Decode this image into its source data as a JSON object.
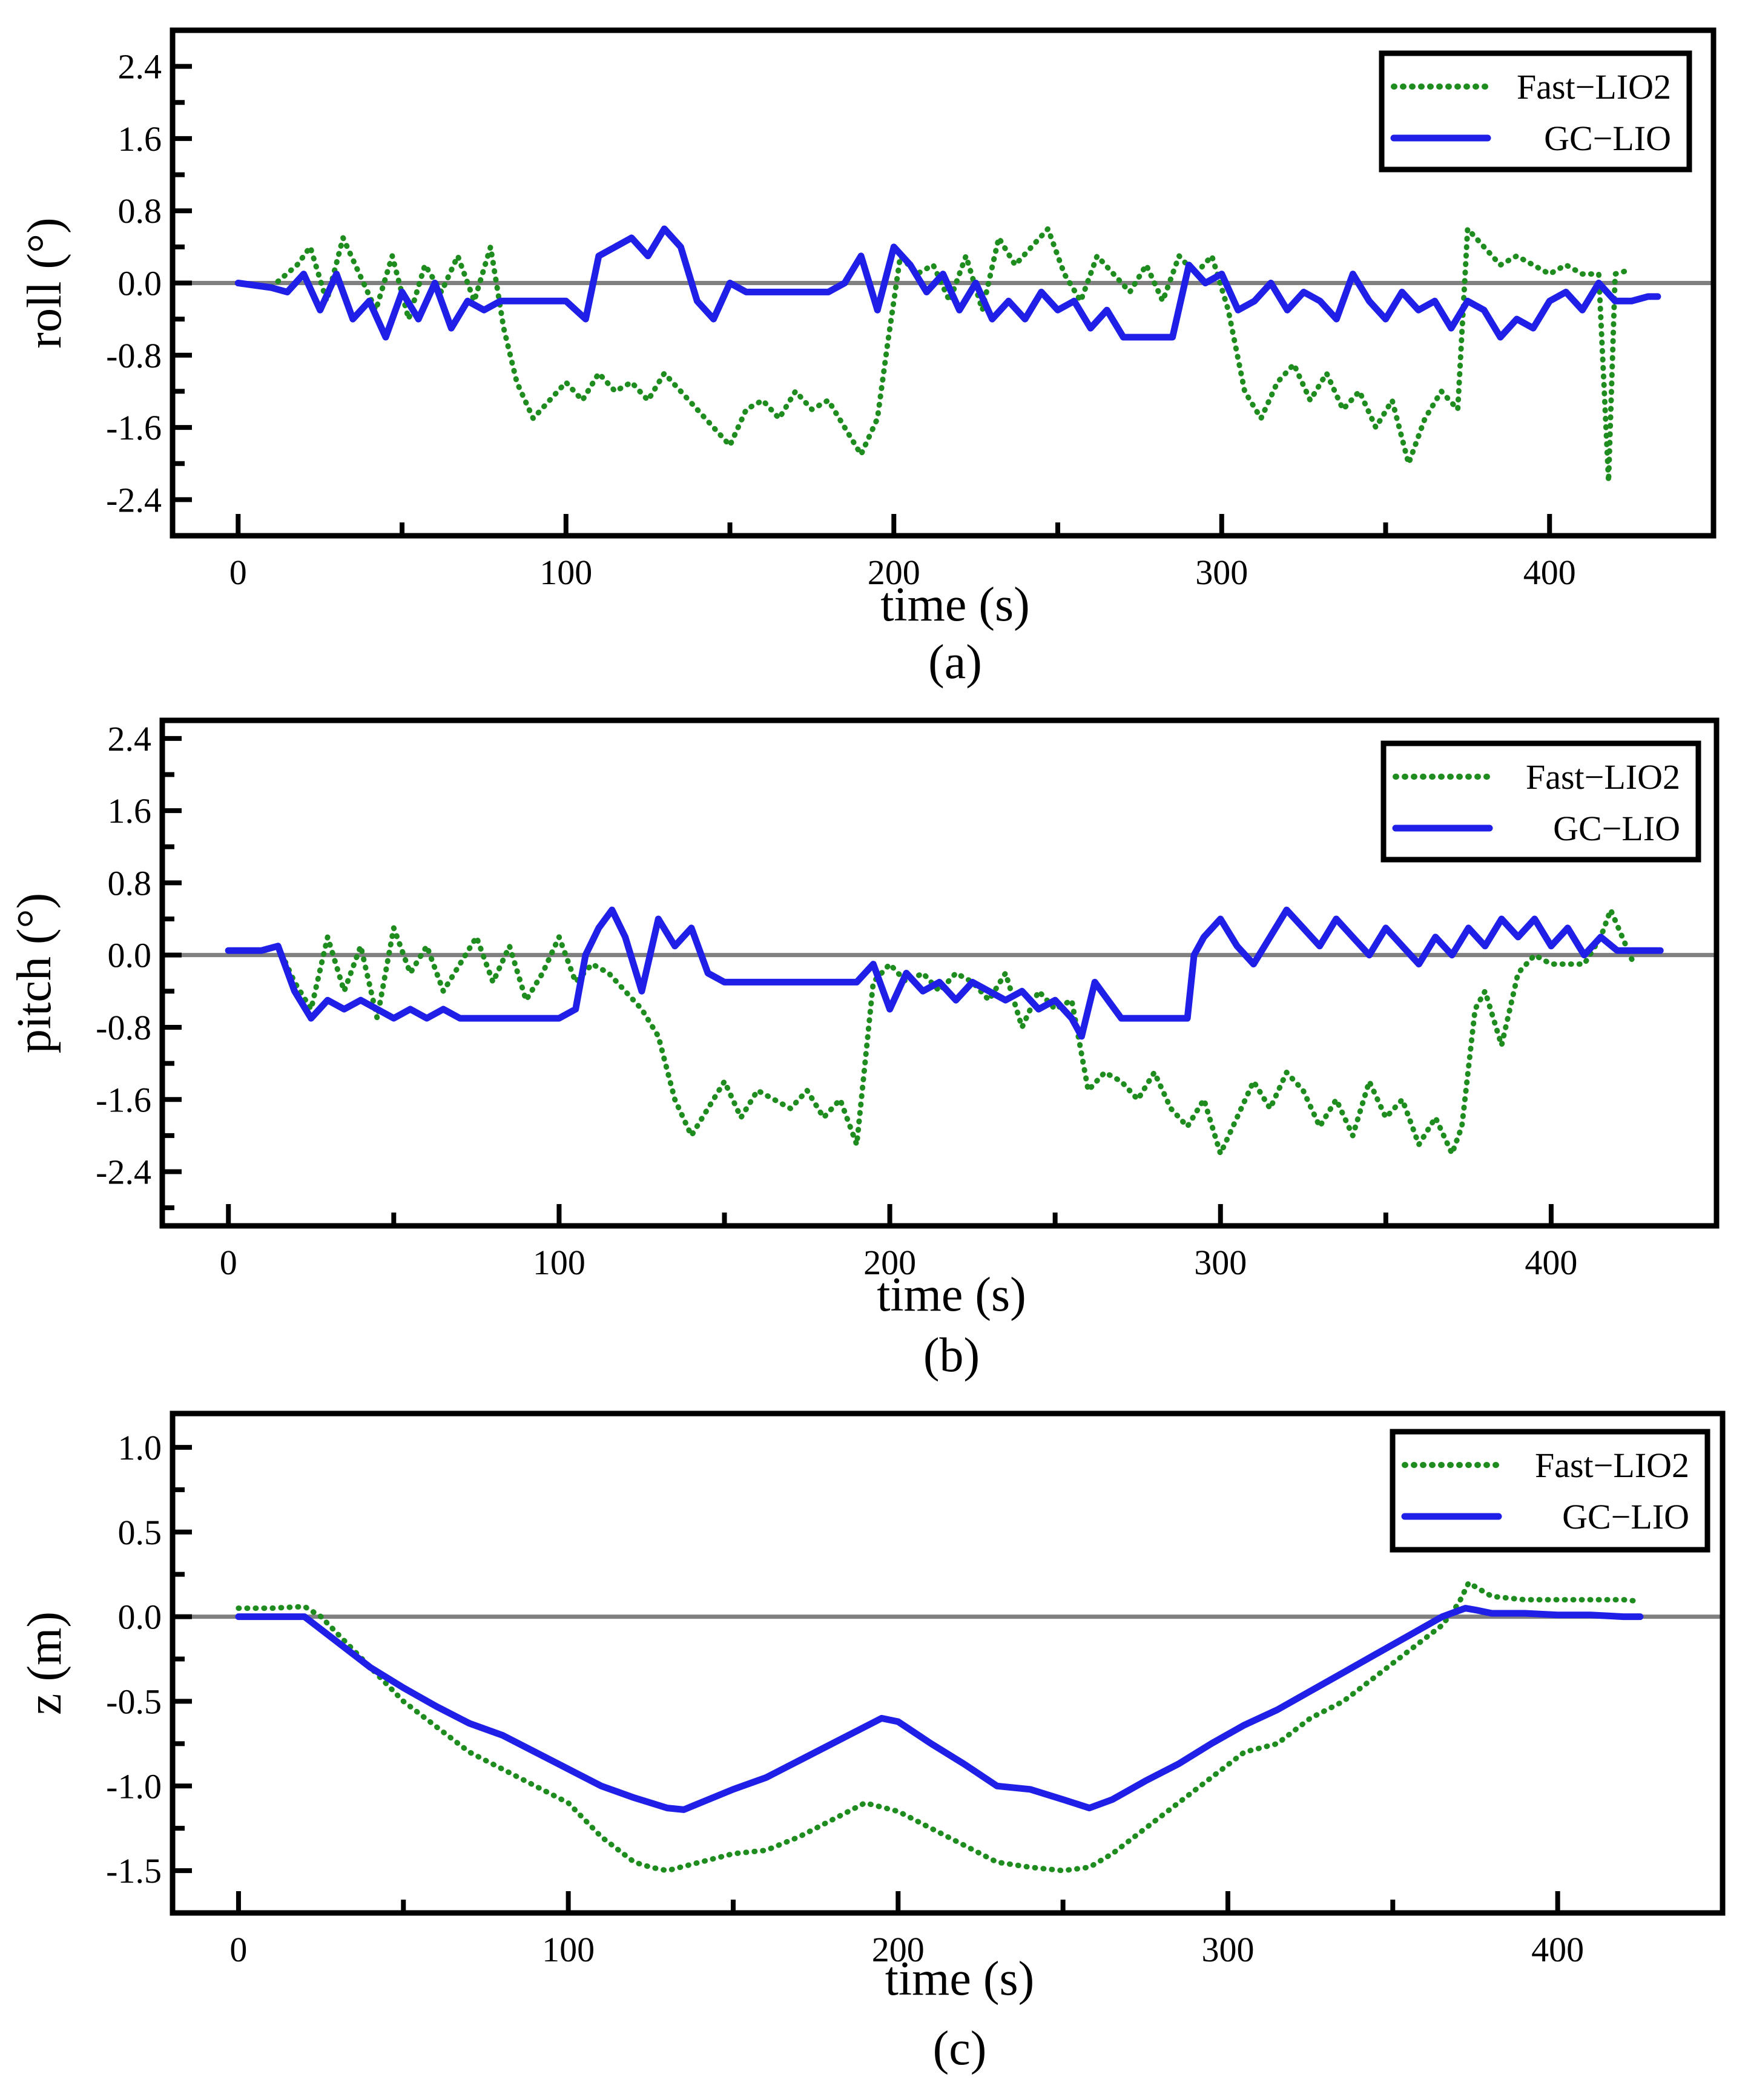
{
  "chart_data": [
    {
      "type": "line",
      "title": "",
      "caption": "(a)",
      "xlabel": "time (s)",
      "ylabel": "roll (°)",
      "xlim": [
        -20,
        450
      ],
      "ylim": [
        -2.8,
        2.8
      ],
      "xticks": [
        0,
        100,
        200,
        300,
        400
      ],
      "xtick_labels": [
        "0",
        "100",
        "200",
        "300",
        "400"
      ],
      "yticks": [
        2.4,
        1.6,
        0.8,
        0.0,
        -0.8,
        -1.6,
        -2.4
      ],
      "ytick_labels": [
        "2.4",
        "1.6",
        "0.8",
        "0.0",
        "-0.8",
        "-1.6",
        "-2.4"
      ],
      "reference_line": 0.0,
      "legend": {
        "position": "top-right",
        "entries": [
          "Fast−LIO2",
          "GC−LIO"
        ]
      },
      "series": [
        {
          "name": "Fast−LIO2",
          "style": "dotted",
          "color": "#1e8c1e",
          "x": [
            0,
            10,
            18,
            22,
            27,
            32,
            37,
            42,
            47,
            52,
            57,
            62,
            67,
            72,
            77,
            81,
            85,
            90,
            95,
            100,
            105,
            110,
            115,
            120,
            125,
            130,
            135,
            140,
            145,
            150,
            155,
            160,
            165,
            170,
            175,
            180,
            185,
            190,
            195,
            198,
            202,
            207,
            212,
            217,
            222,
            227,
            232,
            237,
            242,
            247,
            252,
            257,
            262,
            267,
            272,
            277,
            282,
            287,
            292,
            297,
            302,
            307,
            312,
            317,
            322,
            327,
            332,
            337,
            342,
            347,
            352,
            357,
            362,
            367,
            372,
            375,
            380,
            385,
            390,
            395,
            400,
            405,
            410,
            415,
            418,
            420,
            425
          ],
          "y": [
            0.0,
            -0.05,
            0.2,
            0.4,
            -0.2,
            0.5,
            0.1,
            -0.3,
            0.3,
            -0.4,
            0.2,
            -0.1,
            0.3,
            -0.2,
            0.4,
            -0.5,
            -1.1,
            -1.5,
            -1.3,
            -1.1,
            -1.3,
            -1.0,
            -1.2,
            -1.1,
            -1.3,
            -1.0,
            -1.2,
            -1.4,
            -1.6,
            -1.8,
            -1.4,
            -1.3,
            -1.5,
            -1.2,
            -1.4,
            -1.3,
            -1.6,
            -1.9,
            -1.5,
            -0.7,
            0.3,
            0.1,
            0.2,
            -0.2,
            0.3,
            -0.3,
            0.5,
            0.2,
            0.4,
            0.6,
            0.1,
            -0.2,
            0.3,
            0.1,
            -0.1,
            0.2,
            -0.2,
            0.3,
            0.1,
            0.3,
            -0.3,
            -1.2,
            -1.5,
            -1.1,
            -0.9,
            -1.3,
            -1.0,
            -1.4,
            -1.2,
            -1.6,
            -1.3,
            -2.0,
            -1.5,
            -1.2,
            -1.4,
            0.6,
            0.4,
            0.2,
            0.3,
            0.2,
            0.1,
            0.2,
            0.1,
            0.1,
            -2.2,
            0.1,
            0.15
          ]
        },
        {
          "name": "GC−LIO",
          "style": "solid",
          "color": "#1f1fe8",
          "x": [
            0,
            10,
            15,
            20,
            25,
            30,
            35,
            40,
            45,
            50,
            55,
            60,
            65,
            70,
            75,
            80,
            85,
            90,
            95,
            100,
            103,
            106,
            110,
            115,
            120,
            125,
            130,
            135,
            140,
            145,
            150,
            155,
            160,
            165,
            170,
            175,
            180,
            185,
            190,
            195,
            200,
            205,
            210,
            215,
            220,
            225,
            230,
            235,
            240,
            245,
            250,
            255,
            260,
            265,
            270,
            275,
            280,
            285,
            290,
            295,
            300,
            305,
            310,
            315,
            320,
            325,
            330,
            335,
            340,
            345,
            350,
            355,
            360,
            365,
            370,
            375,
            380,
            385,
            390,
            395,
            400,
            405,
            410,
            415,
            420,
            425,
            430,
            433
          ],
          "y": [
            0.0,
            -0.05,
            -0.1,
            0.1,
            -0.3,
            0.1,
            -0.4,
            -0.2,
            -0.6,
            -0.1,
            -0.4,
            0.0,
            -0.5,
            -0.2,
            -0.3,
            -0.2,
            -0.2,
            -0.2,
            -0.2,
            -0.2,
            -0.3,
            -0.4,
            0.3,
            0.4,
            0.5,
            0.3,
            0.6,
            0.4,
            -0.2,
            -0.4,
            0.0,
            -0.1,
            -0.1,
            -0.1,
            -0.1,
            -0.1,
            -0.1,
            0.0,
            0.3,
            -0.3,
            0.4,
            0.2,
            -0.1,
            0.1,
            -0.3,
            0.0,
            -0.4,
            -0.2,
            -0.4,
            -0.1,
            -0.3,
            -0.2,
            -0.5,
            -0.3,
            -0.6,
            -0.6,
            -0.6,
            -0.6,
            0.2,
            0.0,
            0.1,
            -0.3,
            -0.2,
            0.0,
            -0.3,
            -0.1,
            -0.2,
            -0.4,
            0.1,
            -0.2,
            -0.4,
            -0.1,
            -0.3,
            -0.2,
            -0.5,
            -0.2,
            -0.3,
            -0.6,
            -0.4,
            -0.5,
            -0.2,
            -0.1,
            -0.3,
            0.0,
            -0.2,
            -0.2,
            -0.15,
            -0.15
          ]
        }
      ]
    },
    {
      "type": "line",
      "title": "",
      "caption": "(b)",
      "xlabel": "time (s)",
      "ylabel": "pitch (°)",
      "xlim": [
        -20,
        450
      ],
      "ylim": [
        -3.0,
        2.6
      ],
      "xticks": [
        0,
        100,
        200,
        300,
        400
      ],
      "xtick_labels": [
        "0",
        "100",
        "200",
        "300",
        "400"
      ],
      "yticks": [
        2.4,
        1.6,
        0.8,
        0.0,
        -0.8,
        -1.6,
        -2.4
      ],
      "ytick_labels": [
        "2.4",
        "1.6",
        "0.8",
        "0.0",
        "-0.8",
        "-1.6",
        "-2.4"
      ],
      "reference_line": 0.0,
      "legend": {
        "position": "top-right",
        "entries": [
          "Fast−LIO2",
          "GC−LIO"
        ]
      },
      "series": [
        {
          "name": "Fast−LIO2",
          "style": "dotted",
          "color": "#1e8c1e",
          "x": [
            0,
            10,
            15,
            20,
            25,
            30,
            35,
            40,
            45,
            50,
            55,
            60,
            65,
            70,
            75,
            80,
            85,
            90,
            95,
            100,
            105,
            110,
            115,
            120,
            125,
            130,
            135,
            140,
            145,
            150,
            155,
            160,
            165,
            170,
            175,
            180,
            185,
            190,
            195,
            200,
            205,
            210,
            215,
            220,
            225,
            230,
            235,
            240,
            245,
            250,
            255,
            260,
            265,
            270,
            275,
            280,
            285,
            290,
            295,
            300,
            305,
            310,
            315,
            320,
            325,
            330,
            335,
            340,
            345,
            350,
            355,
            360,
            365,
            370,
            373,
            377,
            380,
            385,
            390,
            395,
            400,
            405,
            410,
            415,
            418,
            425
          ],
          "y": [
            0.05,
            0.05,
            0.1,
            -0.3,
            -0.6,
            0.2,
            -0.4,
            0.1,
            -0.7,
            0.3,
            -0.2,
            0.1,
            -0.4,
            -0.1,
            0.2,
            -0.3,
            0.1,
            -0.5,
            -0.2,
            0.2,
            -0.3,
            -0.1,
            -0.2,
            -0.4,
            -0.6,
            -0.9,
            -1.6,
            -2.0,
            -1.7,
            -1.4,
            -1.8,
            -1.5,
            -1.6,
            -1.7,
            -1.5,
            -1.8,
            -1.6,
            -2.1,
            -0.3,
            -0.1,
            -0.3,
            -0.2,
            -0.4,
            -0.2,
            -0.3,
            -0.5,
            -0.2,
            -0.8,
            -0.4,
            -0.6,
            -0.5,
            -1.5,
            -1.3,
            -1.4,
            -1.6,
            -1.3,
            -1.7,
            -1.9,
            -1.6,
            -2.2,
            -1.8,
            -1.4,
            -1.7,
            -1.3,
            -1.5,
            -1.9,
            -1.6,
            -2.0,
            -1.4,
            -1.8,
            -1.6,
            -2.1,
            -1.8,
            -2.2,
            -1.9,
            -0.6,
            -0.4,
            -1.0,
            -0.2,
            0.0,
            -0.1,
            -0.1,
            -0.1,
            0.2,
            0.5,
            -0.1
          ]
        },
        {
          "name": "GC−LIO",
          "style": "solid",
          "color": "#1f1fe8",
          "x": [
            0,
            10,
            15,
            20,
            25,
            30,
            35,
            40,
            45,
            50,
            55,
            60,
            65,
            70,
            75,
            80,
            85,
            90,
            95,
            100,
            105,
            108,
            112,
            116,
            120,
            125,
            130,
            135,
            140,
            145,
            150,
            155,
            160,
            165,
            170,
            175,
            180,
            185,
            190,
            195,
            200,
            205,
            210,
            215,
            220,
            225,
            230,
            235,
            240,
            245,
            250,
            255,
            258,
            262,
            266,
            270,
            275,
            280,
            285,
            290,
            292,
            295,
            300,
            305,
            310,
            315,
            320,
            325,
            330,
            335,
            340,
            345,
            350,
            355,
            360,
            365,
            370,
            375,
            380,
            385,
            390,
            395,
            400,
            405,
            410,
            415,
            420,
            425,
            430,
            433
          ],
          "y": [
            0.05,
            0.05,
            0.1,
            -0.4,
            -0.7,
            -0.5,
            -0.6,
            -0.5,
            -0.6,
            -0.7,
            -0.6,
            -0.7,
            -0.6,
            -0.7,
            -0.7,
            -0.7,
            -0.7,
            -0.7,
            -0.7,
            -0.7,
            -0.6,
            0.0,
            0.3,
            0.5,
            0.2,
            -0.4,
            0.4,
            0.1,
            0.3,
            -0.2,
            -0.3,
            -0.3,
            -0.3,
            -0.3,
            -0.3,
            -0.3,
            -0.3,
            -0.3,
            -0.3,
            -0.1,
            -0.6,
            -0.2,
            -0.4,
            -0.3,
            -0.5,
            -0.3,
            -0.4,
            -0.5,
            -0.4,
            -0.6,
            -0.5,
            -0.7,
            -0.9,
            -0.3,
            -0.5,
            -0.7,
            -0.7,
            -0.7,
            -0.7,
            -0.7,
            0.0,
            0.2,
            0.4,
            0.1,
            -0.1,
            0.2,
            0.5,
            0.3,
            0.1,
            0.4,
            0.2,
            0.0,
            0.3,
            0.1,
            -0.1,
            0.2,
            0.0,
            0.3,
            0.1,
            0.4,
            0.2,
            0.4,
            0.1,
            0.3,
            0.0,
            0.2,
            0.05,
            0.05,
            0.05,
            0.05
          ]
        }
      ]
    },
    {
      "type": "line",
      "title": "",
      "caption": "(c)",
      "xlabel": "time (s)",
      "ylabel": "z (m)",
      "xlim": [
        -20,
        450
      ],
      "ylim": [
        -1.75,
        1.2
      ],
      "xticks": [
        0,
        100,
        200,
        300,
        400
      ],
      "xtick_labels": [
        "0",
        "100",
        "200",
        "300",
        "400"
      ],
      "yticks": [
        1.0,
        0.5,
        0.0,
        -0.5,
        -1.0,
        -1.5
      ],
      "ytick_labels": [
        "1.0",
        "0.5",
        "0.0",
        "-0.5",
        "-1.0",
        "-1.5"
      ],
      "reference_line": 0.0,
      "legend": {
        "position": "top-right",
        "entries": [
          "Fast−LIO2",
          "GC−LIO"
        ]
      },
      "series": [
        {
          "name": "Fast−LIO2",
          "style": "dotted",
          "color": "#1e8c1e",
          "x": [
            0,
            10,
            20,
            25,
            30,
            40,
            50,
            60,
            70,
            80,
            90,
            100,
            110,
            120,
            125,
            130,
            140,
            150,
            160,
            170,
            180,
            190,
            200,
            210,
            220,
            230,
            240,
            250,
            258,
            265,
            275,
            285,
            295,
            305,
            315,
            325,
            335,
            345,
            355,
            365,
            370,
            373,
            380,
            390,
            400,
            410,
            420,
            425
          ],
          "y": [
            0.05,
            0.05,
            0.06,
            0.0,
            -0.1,
            -0.3,
            -0.5,
            -0.65,
            -0.8,
            -0.9,
            -1.0,
            -1.1,
            -1.3,
            -1.45,
            -1.48,
            -1.5,
            -1.45,
            -1.4,
            -1.38,
            -1.3,
            -1.2,
            -1.1,
            -1.15,
            -1.25,
            -1.35,
            -1.45,
            -1.48,
            -1.5,
            -1.48,
            -1.4,
            -1.25,
            -1.1,
            -0.95,
            -0.8,
            -0.75,
            -0.6,
            -0.5,
            -0.35,
            -0.2,
            -0.05,
            0.08,
            0.2,
            0.12,
            0.1,
            0.1,
            0.1,
            0.1,
            0.09
          ]
        },
        {
          "name": "GC−LIO",
          "style": "solid",
          "color": "#1f1fe8",
          "x": [
            0,
            10,
            20,
            30,
            40,
            50,
            60,
            70,
            80,
            90,
            100,
            110,
            120,
            130,
            135,
            140,
            150,
            160,
            170,
            180,
            190,
            195,
            200,
            210,
            220,
            230,
            240,
            250,
            258,
            265,
            275,
            285,
            295,
            305,
            315,
            325,
            335,
            345,
            355,
            365,
            372,
            375,
            380,
            390,
            400,
            410,
            420,
            425
          ],
          "y": [
            0.0,
            0.0,
            0.0,
            -0.15,
            -0.3,
            -0.42,
            -0.53,
            -0.63,
            -0.7,
            -0.8,
            -0.9,
            -1.0,
            -1.07,
            -1.13,
            -1.14,
            -1.1,
            -1.02,
            -0.95,
            -0.85,
            -0.75,
            -0.65,
            -0.6,
            -0.62,
            -0.75,
            -0.87,
            -1.0,
            -1.02,
            -1.08,
            -1.13,
            -1.08,
            -0.97,
            -0.87,
            -0.75,
            -0.64,
            -0.55,
            -0.44,
            -0.33,
            -0.22,
            -0.11,
            0.0,
            0.05,
            0.04,
            0.02,
            0.02,
            0.01,
            0.01,
            0.0,
            0.0
          ]
        }
      ]
    }
  ]
}
